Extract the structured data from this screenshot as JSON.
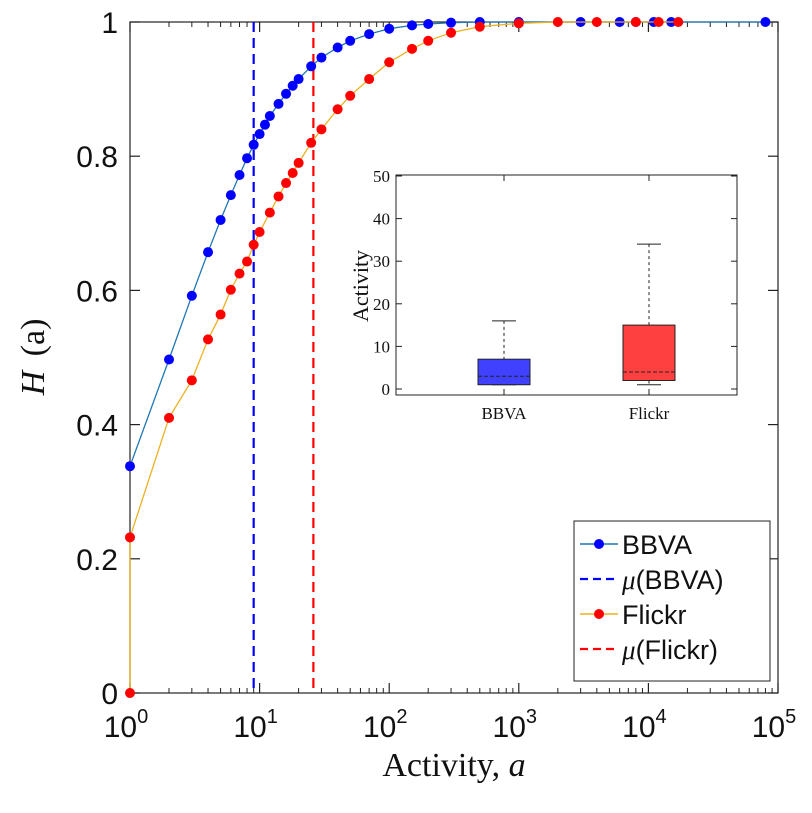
{
  "chart_data": [
    {
      "type": "line",
      "xscale": "log",
      "xlim": [
        1,
        100000
      ],
      "ylim": [
        0,
        1
      ],
      "xlabel": "Activity,",
      "xlabel_var": "a",
      "ylabel_var": "H",
      "ylabel_arg": "(a)",
      "x_ticks": [
        {
          "base": "10",
          "exp": "0",
          "value": 1
        },
        {
          "base": "10",
          "exp": "1",
          "value": 10
        },
        {
          "base": "10",
          "exp": "2",
          "value": 100
        },
        {
          "base": "10",
          "exp": "3",
          "value": 1000
        },
        {
          "base": "10",
          "exp": "4",
          "value": 10000
        },
        {
          "base": "10",
          "exp": "5",
          "value": 100000
        }
      ],
      "y_ticks": [
        {
          "label": "0",
          "value": 0
        },
        {
          "label": "0.2",
          "value": 0.2
        },
        {
          "label": "0.4",
          "value": 0.4
        },
        {
          "label": "0.6",
          "value": 0.6
        },
        {
          "label": "0.8",
          "value": 0.8
        },
        {
          "label": "1",
          "value": 1
        }
      ],
      "legend_position": "bottom-right",
      "series": [
        {
          "name": "BBVA",
          "marker_color": "#0000ff",
          "line_color": "#1f77b4",
          "points": [
            [
              1,
              0.338
            ],
            [
              2,
              0.497
            ],
            [
              3,
              0.592
            ],
            [
              4,
              0.657
            ],
            [
              5,
              0.705
            ],
            [
              6,
              0.742
            ],
            [
              7,
              0.772
            ],
            [
              8,
              0.797
            ],
            [
              9,
              0.817
            ],
            [
              10,
              0.833
            ],
            [
              11,
              0.847
            ],
            [
              12,
              0.86
            ],
            [
              14,
              0.878
            ],
            [
              16,
              0.893
            ],
            [
              18,
              0.905
            ],
            [
              20,
              0.915
            ],
            [
              25,
              0.934
            ],
            [
              30,
              0.947
            ],
            [
              40,
              0.962
            ],
            [
              50,
              0.972
            ],
            [
              70,
              0.982
            ],
            [
              100,
              0.99
            ],
            [
              150,
              0.995
            ],
            [
              200,
              0.997
            ],
            [
              300,
              0.999
            ],
            [
              500,
              1.0
            ],
            [
              1000,
              1.0
            ],
            [
              3000,
              1.0
            ],
            [
              6000,
              1.0
            ],
            [
              8000,
              1.0
            ],
            [
              11000,
              1.0
            ],
            [
              15000,
              1.0
            ],
            [
              80000,
              1.0
            ]
          ]
        },
        {
          "name": "Flickr",
          "marker_color": "#ff0000",
          "line_color": "#edb120",
          "points": [
            [
              1,
              0.0
            ],
            [
              1,
              0.232
            ],
            [
              2,
              0.41
            ],
            [
              3,
              0.466
            ],
            [
              4,
              0.527
            ],
            [
              5,
              0.564
            ],
            [
              6,
              0.601
            ],
            [
              7,
              0.625
            ],
            [
              8,
              0.643
            ],
            [
              9,
              0.668
            ],
            [
              10,
              0.687
            ],
            [
              12,
              0.716
            ],
            [
              14,
              0.74
            ],
            [
              16,
              0.76
            ],
            [
              18,
              0.775
            ],
            [
              20,
              0.79
            ],
            [
              25,
              0.82
            ],
            [
              30,
              0.84
            ],
            [
              40,
              0.87
            ],
            [
              50,
              0.89
            ],
            [
              70,
              0.915
            ],
            [
              100,
              0.94
            ],
            [
              150,
              0.96
            ],
            [
              200,
              0.972
            ],
            [
              300,
              0.984
            ],
            [
              500,
              0.993
            ],
            [
              1000,
              0.998
            ],
            [
              2000,
              1.0
            ],
            [
              4000,
              1.0
            ],
            [
              8000,
              1.0
            ],
            [
              12000,
              1.0
            ],
            [
              17000,
              1.0
            ]
          ]
        },
        {
          "name": "μ(BBVA)",
          "style": "dashed",
          "line_color": "#0000ff",
          "x": 9
        },
        {
          "name": "μ(Flickr)",
          "style": "dashed",
          "line_color": "#ff0000",
          "x": 26
        }
      ],
      "legend": [
        {
          "label": "BBVA",
          "kind": "marker-line",
          "line_color": "#1f77b4",
          "marker_color": "#0000ff"
        },
        {
          "label": "(BBVA)",
          "prefix": "μ",
          "kind": "dashed",
          "line_color": "#0000ff"
        },
        {
          "label": "Flickr",
          "kind": "marker-line",
          "line_color": "#edb120",
          "marker_color": "#ff0000"
        },
        {
          "label": "(Flickr)",
          "prefix": "μ",
          "kind": "dashed",
          "line_color": "#ff0000"
        }
      ]
    },
    {
      "type": "box",
      "ylabel": "Activity",
      "ylim": [
        0,
        50
      ],
      "y_ticks": [
        "0",
        "10",
        "20",
        "30",
        "40",
        "50"
      ],
      "categories": [
        "BBVA",
        "Flickr"
      ],
      "boxes": [
        {
          "name": "BBVA",
          "whisker_low": 1,
          "q1": 1,
          "median": 3,
          "q3": 7,
          "whisker_high": 16,
          "color": "#4040ff"
        },
        {
          "name": "Flickr",
          "whisker_low": 1,
          "q1": 2,
          "median": 4,
          "q3": 15,
          "whisker_high": 34,
          "color": "#ff4040"
        }
      ]
    }
  ]
}
